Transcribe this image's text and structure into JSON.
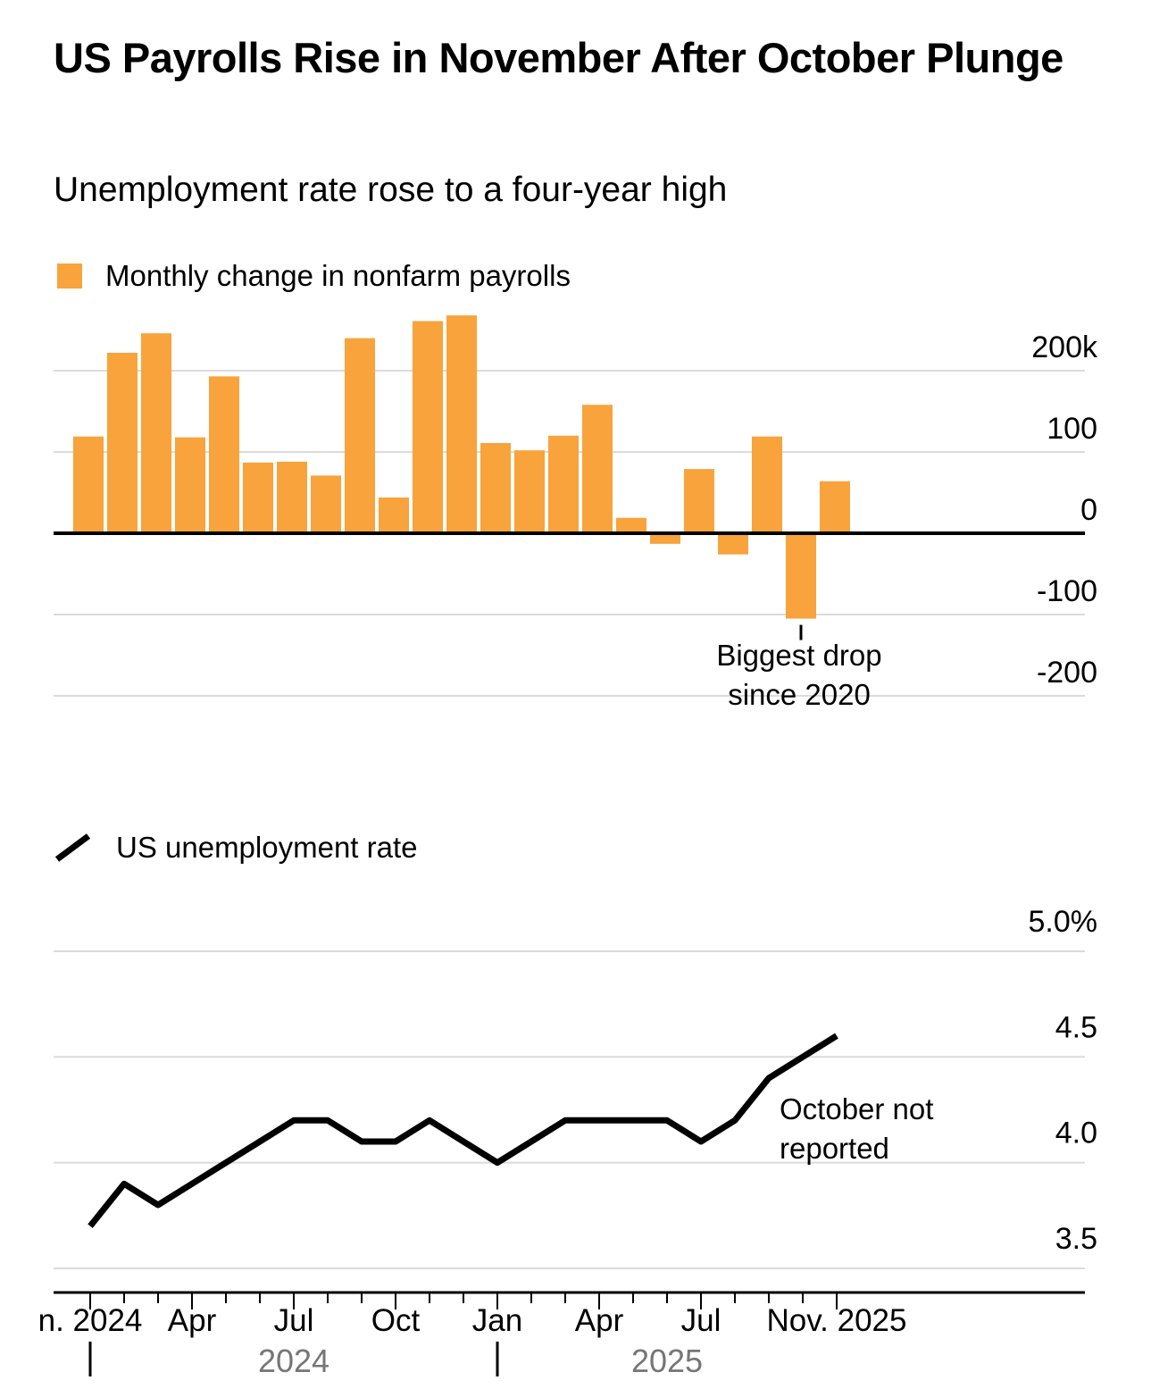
{
  "header": {
    "title": "US Payrolls Rise in November After October Plunge",
    "subtitle": "Unemployment rate rose to a four-year high"
  },
  "colors": {
    "bar": "#F8A33B",
    "line": "#000000",
    "grid": "#DBDBDB",
    "axis": "#000000",
    "text": "#000000",
    "era_text": "#767676",
    "background": "#FFFFFF"
  },
  "chart_data": [
    {
      "type": "bar",
      "legend": "Monthly change in nonfarm payrolls",
      "unit": "thousands of jobs",
      "categories": [
        "Jan 2024",
        "Feb 2024",
        "Mar 2024",
        "Apr 2024",
        "May 2024",
        "Jun 2024",
        "Jul 2024",
        "Aug 2024",
        "Sep 2024",
        "Oct 2024",
        "Nov 2024",
        "Dec 2024",
        "Jan 2025",
        "Feb 2025",
        "Mar 2025",
        "Apr 2025",
        "May 2025",
        "Jun 2025",
        "Jul 2025",
        "Aug 2025",
        "Sep 2025",
        "Oct 2025",
        "Nov 2025"
      ],
      "values": [
        119,
        222,
        246,
        118,
        193,
        87,
        88,
        71,
        240,
        44,
        261,
        268,
        111,
        102,
        120,
        158,
        19,
        -13,
        79,
        -26,
        119,
        -105,
        64
      ],
      "ylim": [
        -250,
        260
      ],
      "grid": "on",
      "legend_position": "top-left",
      "y_ticks": [
        {
          "value": 200,
          "label": "200k"
        },
        {
          "value": 100,
          "label": "100"
        },
        {
          "value": 0,
          "label": "0"
        },
        {
          "value": -100,
          "label": "-100"
        },
        {
          "value": -200,
          "label": "-200"
        }
      ],
      "annotation": {
        "lines": [
          "Biggest drop",
          "since 2020"
        ],
        "target_category": "Oct 2025",
        "target_index": 21
      }
    },
    {
      "type": "line",
      "legend": "US unemployment rate",
      "unit": "percent",
      "categories": [
        "Jan 2024",
        "Feb 2024",
        "Mar 2024",
        "Apr 2024",
        "May 2024",
        "Jun 2024",
        "Jul 2024",
        "Aug 2024",
        "Sep 2024",
        "Oct 2024",
        "Nov 2024",
        "Dec 2024",
        "Jan 2025",
        "Feb 2025",
        "Mar 2025",
        "Apr 2025",
        "May 2025",
        "Jun 2025",
        "Jul 2025",
        "Aug 2025",
        "Sep 2025",
        "Oct 2025",
        "Nov 2025"
      ],
      "values": [
        3.7,
        3.9,
        3.8,
        3.9,
        4.0,
        4.1,
        4.2,
        4.2,
        4.1,
        4.1,
        4.2,
        4.1,
        4.0,
        4.1,
        4.2,
        4.2,
        4.2,
        4.2,
        4.1,
        4.2,
        4.4,
        null,
        4.6
      ],
      "ylim": [
        3.4,
        5.1
      ],
      "grid": "on",
      "legend_position": "top-left",
      "y_ticks": [
        {
          "value": 5.0,
          "label": "5.0%"
        },
        {
          "value": 4.5,
          "label": "4.5"
        },
        {
          "value": 4.0,
          "label": "4.0"
        },
        {
          "value": 3.5,
          "label": "3.5"
        }
      ],
      "annotation": {
        "lines": [
          "October not",
          "reported"
        ],
        "target_category": "Oct 2025",
        "target_index": 21
      }
    }
  ],
  "x_axis": {
    "labels": [
      {
        "month_index": 0,
        "text": "n. 2024"
      },
      {
        "month_index": 3,
        "text": "Apr"
      },
      {
        "month_index": 6,
        "text": "Jul"
      },
      {
        "month_index": 9,
        "text": "Oct"
      },
      {
        "month_index": 12,
        "text": "Jan"
      },
      {
        "month_index": 15,
        "text": "Apr"
      },
      {
        "month_index": 18,
        "text": "Jul"
      },
      {
        "month_index": 22,
        "text": "Nov. 2025"
      }
    ],
    "eras": [
      {
        "label": "2024",
        "start_month_index": 0
      },
      {
        "label": "2025",
        "start_month_index": 12
      }
    ]
  }
}
